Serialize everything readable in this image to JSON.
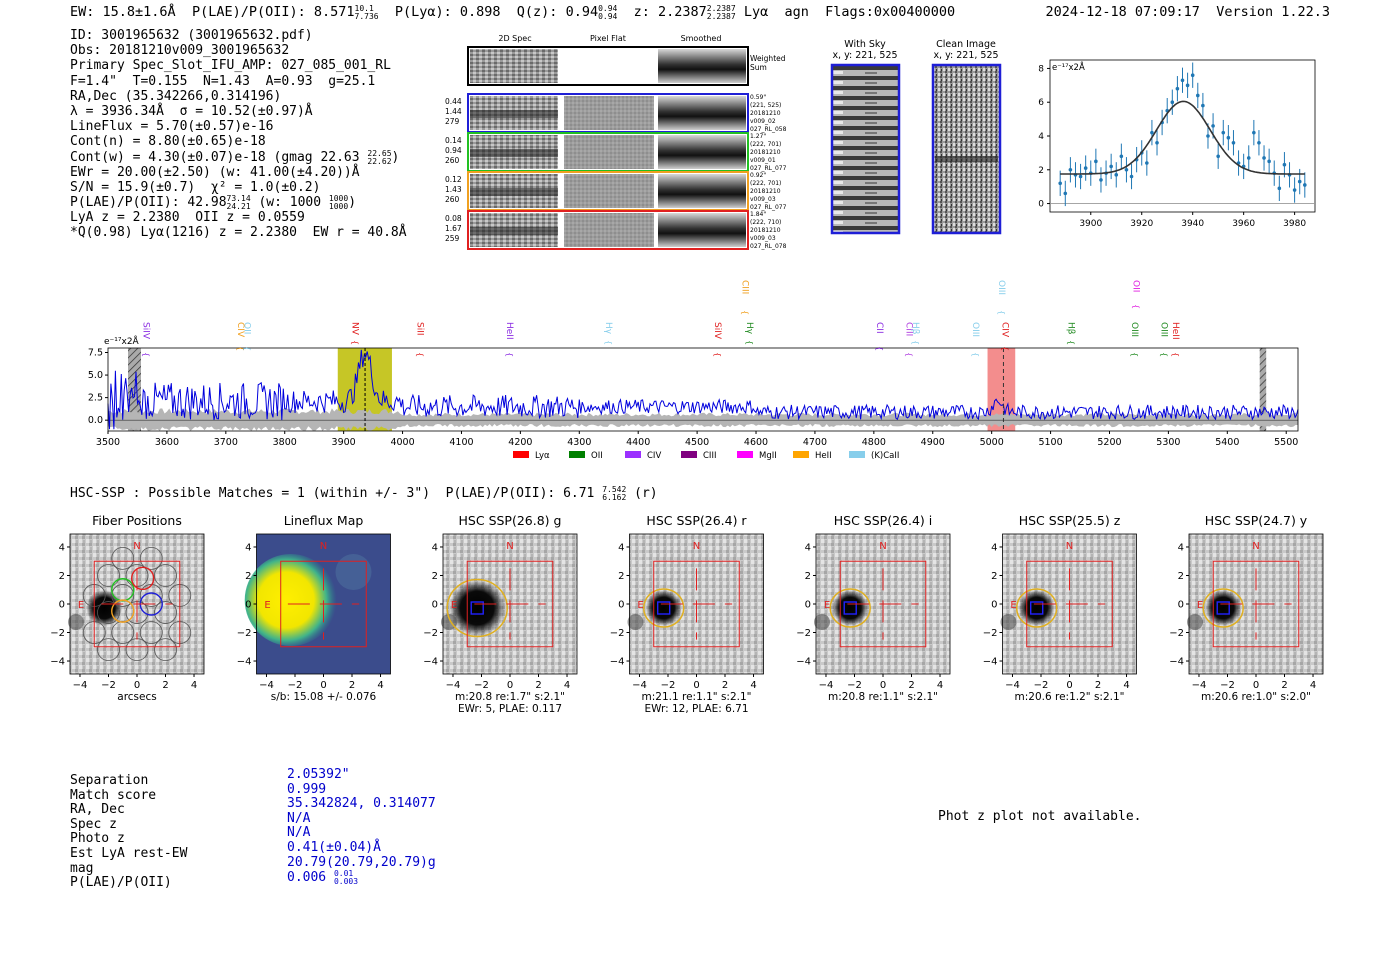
{
  "header": {
    "ew": "EW: 15.8±1.6Å",
    "plae_label": "P(LAE)/P(OII): 8.571",
    "plae_hi": "10.1",
    "plae_lo": "7.736",
    "plya": "P(Lyα): 0.898",
    "qz": "Q(z): 0.94",
    "qz_hi": "0.94",
    "qz_lo": "0.94",
    "z": "z: 2.2387",
    "z_hi": "2.2387",
    "z_lo": "2.2387",
    "line": "Lyα",
    "agn": "agn",
    "flags": "Flags:0x00400000",
    "timestamp": "2024-12-18 07:09:17",
    "version": "Version 1.22.3"
  },
  "info": {
    "id": "ID: 3001965632 (3001965632.pdf)",
    "obs": "Obs: 20181210v009_3001965632",
    "primary": "Primary Spec_Slot_IFU_AMP: 027_085_001_RL",
    "params": "F=1.4\"  T=0.155  N=1.43  A=0.93  g=25.1",
    "radec": "RA,Dec (35.342266,0.314196)",
    "lambda": "λ = 3936.34Å  σ = 10.52(±0.97)Å",
    "lineflux": "LineFlux = 5.70(±0.57)e-16",
    "contn": "Cont(n) = 8.80(±0.65)e-18",
    "contw": "Cont(w) = 4.30(±0.07)e-18 (gmag 22.63",
    "contw_hi": "22.65",
    "contw_lo": "22.62",
    "ewr": "EWr = 20.00(±2.50) (w: 41.00(±4.20))Å",
    "sn": "S/N = 15.9(±0.7)  χ² = 1.0(±0.2)",
    "plae": "P(LAE)/P(OII): 42.98",
    "plae_hi": "73.14",
    "plae_lo": "24.21",
    "plae_w": "(w: 1000",
    "plae_w_hi": "1000",
    "plae_w_lo": "1000",
    "lyaz": "LyA z = 2.2380  OII z = 0.0559",
    "q": "*Q(0.98) Lyα(1216) z = 2.2380  EW r = 40.8Å"
  },
  "cutouts": {
    "col_titles": [
      "2D Spec",
      "Pixel Flat",
      "Smoothed"
    ],
    "weighted_sum": "Weighted Sum",
    "rows": [
      {
        "nums": [
          "0.44",
          "1.44",
          "279"
        ],
        "meta": [
          "0.59\"",
          "(221, 525)",
          "20181210",
          "v009_02",
          "027_RL_058"
        ],
        "color": "#1f1fd6"
      },
      {
        "nums": [
          "0.14",
          "0.94",
          "260"
        ],
        "meta": [
          "1.27\"",
          "(222, 701)",
          "20181210",
          "v009_01",
          "027_RL_077"
        ],
        "color": "#22c022"
      },
      {
        "nums": [
          "0.12",
          "1.43",
          "260"
        ],
        "meta": [
          "0.92\"",
          "(222, 701)",
          "20181210",
          "v009_03",
          "027_RL_077"
        ],
        "color": "#f0a020"
      },
      {
        "nums": [
          "0.08",
          "1.67",
          "259"
        ],
        "meta": [
          "1.84\"",
          "(222, 710)",
          "20181210",
          "v009_03",
          "027_RL_078"
        ],
        "color": "#e02020"
      }
    ],
    "with_sky": "With Sky",
    "clean_image": "Clean Image",
    "xy": "x, y: 221, 525"
  },
  "chart_data": [
    {
      "type": "scatter",
      "title": "",
      "ylabel": "e⁻¹⁷x2Å",
      "xlim": [
        3884,
        3988
      ],
      "ylim": [
        -0.5,
        8.5
      ],
      "xticks": [
        3900,
        3920,
        3940,
        3960,
        3980
      ],
      "yticks": [
        0,
        2,
        4,
        6,
        8
      ],
      "points_x": [
        3888,
        3890,
        3892,
        3894,
        3896,
        3898,
        3900,
        3902,
        3904,
        3906,
        3908,
        3910,
        3912,
        3914,
        3916,
        3918,
        3920,
        3922,
        3924,
        3926,
        3928,
        3930,
        3932,
        3934,
        3936,
        3938,
        3940,
        3942,
        3944,
        3946,
        3948,
        3950,
        3952,
        3954,
        3956,
        3958,
        3960,
        3962,
        3964,
        3966,
        3968,
        3970,
        3972,
        3974,
        3976,
        3978,
        3980,
        3982,
        3984
      ],
      "points_y": [
        1.2,
        0.6,
        2.0,
        1.7,
        1.6,
        2.1,
        1.8,
        2.5,
        1.4,
        1.8,
        2.2,
        1.7,
        2.8,
        2.0,
        1.6,
        2.6,
        3.0,
        2.4,
        4.2,
        3.6,
        4.8,
        5.5,
        6.0,
        6.8,
        7.3,
        7.0,
        7.6,
        6.4,
        5.8,
        4.0,
        4.6,
        2.8,
        4.2,
        3.9,
        3.6,
        2.4,
        2.2,
        2.7,
        4.2,
        3.6,
        2.7,
        2.5,
        1.8,
        0.9,
        2.3,
        1.7,
        0.8,
        1.3,
        1.1
      ],
      "errors": 0.75,
      "fit": {
        "amplitude": 4.3,
        "center": 3936.34,
        "sigma": 10.52,
        "continuum": 1.75
      }
    },
    {
      "type": "line",
      "xlabel": "",
      "ylabel": "e⁻¹⁷x2Å",
      "xlim": [
        3500,
        5520
      ],
      "ylim": [
        -1.2,
        8.0
      ],
      "xticks": [
        3500,
        3600,
        3700,
        3800,
        3900,
        4000,
        4100,
        4200,
        4300,
        4400,
        4500,
        4600,
        4700,
        4800,
        4900,
        5000,
        5100,
        5200,
        5300,
        5400,
        5500
      ],
      "yticks": [
        0.0,
        2.5,
        5.0,
        7.5
      ],
      "ytick_labels": [
        "0.0",
        "2.5",
        "5.0",
        "7.5"
      ],
      "emission_line": 3936.34,
      "highlight_yellow": [
        3890,
        3982
      ],
      "highlight_red": [
        4993,
        5040
      ],
      "red_dashed": 5020,
      "hatched": [
        [
          3534,
          3556
        ],
        [
          5455,
          5466
        ]
      ],
      "line_markers": [
        {
          "label": "SiIV",
          "wave": 3555,
          "color": "#8a2be2",
          "row": 0
        },
        {
          "label": "CIV",
          "wave": 3716,
          "color": "#f0a020",
          "row": 0
        },
        {
          "label": "OII",
          "wave": 3727,
          "color": "#87ceeb",
          "row": 0
        },
        {
          "label": "NV",
          "wave": 3910,
          "color": "#e02020",
          "row": 0
        },
        {
          "label": "SiII",
          "wave": 4020,
          "color": "#e02020",
          "row": 0
        },
        {
          "label": "HeII",
          "wave": 4172,
          "color": "#8a2be2",
          "row": 0
        },
        {
          "label": "Hγ",
          "wave": 4340,
          "color": "#87ceeb",
          "row": 0
        },
        {
          "label": "SiIV",
          "wave": 4525,
          "color": "#e02020",
          "row": 0
        },
        {
          "label": "Hγ",
          "wave": 4580,
          "color": "#228b22",
          "row": 0
        },
        {
          "label": "CIII",
          "wave": 4572,
          "color": "#f0a020",
          "row": 1
        },
        {
          "label": "CII",
          "wave": 4800,
          "color": "#8a2be2",
          "row": 0
        },
        {
          "label": "CIII",
          "wave": 4850,
          "color": "#b040e0",
          "row": 0
        },
        {
          "label": "Hβ",
          "wave": 4861,
          "color": "#87ceeb",
          "row": 0
        },
        {
          "label": "OIII",
          "wave": 4963,
          "color": "#87ceeb",
          "row": 0
        },
        {
          "label": "CIV",
          "wave": 5013,
          "color": "#e02020",
          "row": 0
        },
        {
          "label": "OIII",
          "wave": 5007,
          "color": "#87ceeb",
          "row": 1
        },
        {
          "label": "Hβ",
          "wave": 5125,
          "color": "#228b22",
          "row": 0
        },
        {
          "label": "OIII",
          "wave": 5233,
          "color": "#228b22",
          "row": 0
        },
        {
          "label": "OII",
          "wave": 5236,
          "color": "#e020e0",
          "row": 1
        },
        {
          "label": "OIII",
          "wave": 5283,
          "color": "#228b22",
          "row": 0
        },
        {
          "label": "HeII",
          "wave": 5303,
          "color": "#e02020",
          "row": 0
        }
      ],
      "legend": [
        {
          "label": "Lyα",
          "color": "#ff0000"
        },
        {
          "label": "OII",
          "color": "#008000"
        },
        {
          "label": "CIV",
          "color": "#9b30ff"
        },
        {
          "label": "CIII",
          "color": "#800080"
        },
        {
          "label": "MgII",
          "color": "#ff00ff"
        },
        {
          "label": "HeII",
          "color": "#ffa500"
        },
        {
          "label": "(K)CaII",
          "color": "#87ceeb"
        }
      ]
    }
  ],
  "hsc": {
    "title": "HSC-SSP : Possible Matches = 1 (within +/- 3\")  P(LAE)/P(OII): 6.71",
    "title_hi": "7.542",
    "title_lo": "6.162",
    "title_band": "(r)",
    "panels": [
      {
        "title": "Fiber Positions",
        "caption": [
          "arcsecs"
        ]
      },
      {
        "title": "Lineflux Map",
        "caption": [
          "s/b: 15.08 +/- 0.076"
        ]
      },
      {
        "title": "HSC SSP(26.8) g",
        "caption": [
          "m:20.8  re:1.7\"  s:2.1\"",
          "EWr: 5, PLAE: 0.117"
        ]
      },
      {
        "title": "HSC SSP(26.4) r",
        "caption": [
          "m:21.1  re:1.1\"  s:2.1\"",
          "EWr: 12, PLAE: 6.71"
        ]
      },
      {
        "title": "HSC SSP(26.4) i",
        "caption": [
          "m:20.8  re:1.1\"  s:2.1\""
        ]
      },
      {
        "title": "HSC SSP(25.5) z",
        "caption": [
          "m:20.6  re:1.2\"  s:2.1\""
        ]
      },
      {
        "title": "HSC SSP(24.7) y",
        "caption": [
          "m:20.6  re:1.0\"  s:2.0\""
        ]
      }
    ],
    "tick_labels": [
      "−4",
      "−2",
      "0",
      "2",
      "4"
    ],
    "north": "N",
    "east": "E"
  },
  "match": {
    "labels": [
      "Separation",
      "Match score",
      "RA, Dec",
      "Spec z",
      "Photo z",
      "Est LyA rest-EW",
      "mag",
      "P(LAE)/P(OII)"
    ],
    "values": [
      "2.05392\"",
      "0.999",
      "35.342824, 0.314077",
      "N/A",
      "N/A",
      "0.41(±0.04)Å",
      "20.79(20.79,20.79)g",
      "0.006"
    ],
    "plae_hi": "0.01",
    "plae_lo": "0.003",
    "phot_z": "Phot z plot not available."
  }
}
